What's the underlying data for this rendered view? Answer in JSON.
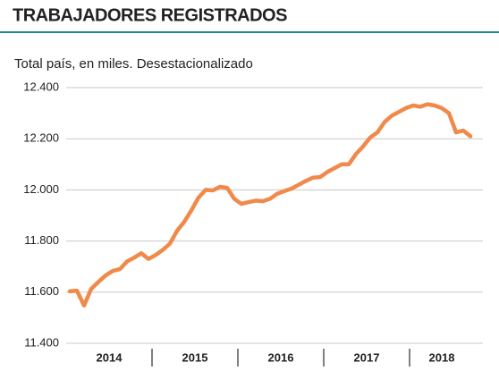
{
  "chart_data": {
    "type": "line",
    "title": "TRABAJADORES REGISTRADOS",
    "subtitle": "Total país, en miles. Desestacionalizado",
    "categories": [
      "2014",
      null,
      null,
      null,
      null,
      null,
      null,
      null,
      null,
      null,
      null,
      null,
      "2015",
      null,
      null,
      null,
      null,
      null,
      null,
      null,
      null,
      null,
      null,
      null,
      "2016",
      null,
      null,
      null,
      null,
      null,
      null,
      null,
      null,
      null,
      null,
      null,
      "2017",
      null,
      null,
      null,
      null,
      null,
      null,
      null,
      null,
      null,
      null,
      null,
      "2018",
      null,
      null,
      null,
      null,
      null,
      null,
      null,
      null
    ],
    "values": [
      11603,
      11606,
      11548,
      11613,
      11640,
      11665,
      11683,
      11690,
      11720,
      11735,
      11752,
      11730,
      11745,
      11765,
      11790,
      11840,
      11875,
      11920,
      11970,
      12000,
      11998,
      12012,
      12008,
      11965,
      11945,
      11952,
      11958,
      11956,
      11965,
      11985,
      11995,
      12005,
      12020,
      12035,
      12048,
      12050,
      12070,
      12085,
      12100,
      12100,
      12140,
      12170,
      12205,
      12225,
      12265,
      12290,
      12305,
      12320,
      12330,
      12325,
      12335,
      12330,
      12320,
      12300,
      12225,
      12232,
      12210
    ],
    "color": "#f0894a",
    "ylim": [
      11400,
      12400
    ],
    "yticks": [
      {
        "value": 11400,
        "label": "11.400"
      },
      {
        "value": 11600,
        "label": "11.600"
      },
      {
        "value": 11800,
        "label": "11.800"
      },
      {
        "value": 12000,
        "label": "12.000"
      },
      {
        "value": 12200,
        "label": "12.200"
      },
      {
        "value": 12400,
        "label": "12.400"
      }
    ],
    "grid": true
  }
}
